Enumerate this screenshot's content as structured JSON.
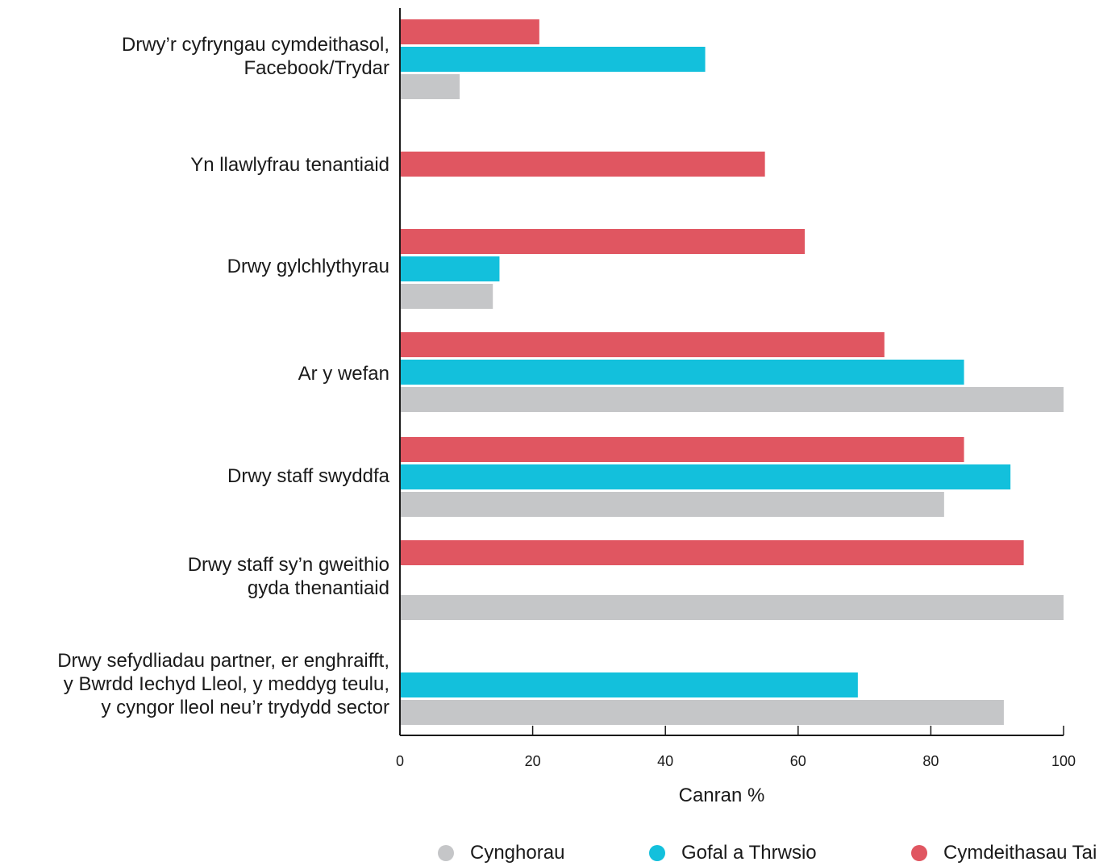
{
  "chart_data": {
    "type": "bar",
    "orientation": "horizontal",
    "categories": [
      "Drwy’r cyfryngau cymdeithasol,\nFacebook/Trydar",
      "Yn llawlyfrau tenantiaid",
      "Drwy gylchlythyrau",
      "Ar y wefan",
      "Drwy staff swyddfa",
      "Drwy staff sy’n gweithio\ngyda thenantiaid",
      "Drwy sefydliadau partner, er enghraifft,\ny Bwrdd Iechyd Lleol, y meddyg teulu,\ny cyngor lleol neu’r trydydd sector"
    ],
    "series": [
      {
        "name": "Cymdeithasau Tai",
        "color": "#e05661",
        "values": [
          21,
          55,
          61,
          73,
          85,
          94,
          null
        ]
      },
      {
        "name": "Gofal a Thrwsio",
        "color": "#13c0dc",
        "values": [
          46,
          null,
          15,
          85,
          92,
          null,
          69
        ]
      },
      {
        "name": "Cynghorau",
        "color": "#c5c6c8",
        "values": [
          9,
          null,
          14,
          100,
          82,
          100,
          91
        ]
      }
    ],
    "xlabel": "Canran %",
    "xlim": [
      0,
      100
    ],
    "xticks": [
      0,
      20,
      40,
      60,
      80,
      100
    ],
    "legend_order": [
      "Cynghorau",
      "Gofal a Thrwsio",
      "Cymdeithasau Tai"
    ],
    "legend_position": "bottom",
    "grid": false
  }
}
